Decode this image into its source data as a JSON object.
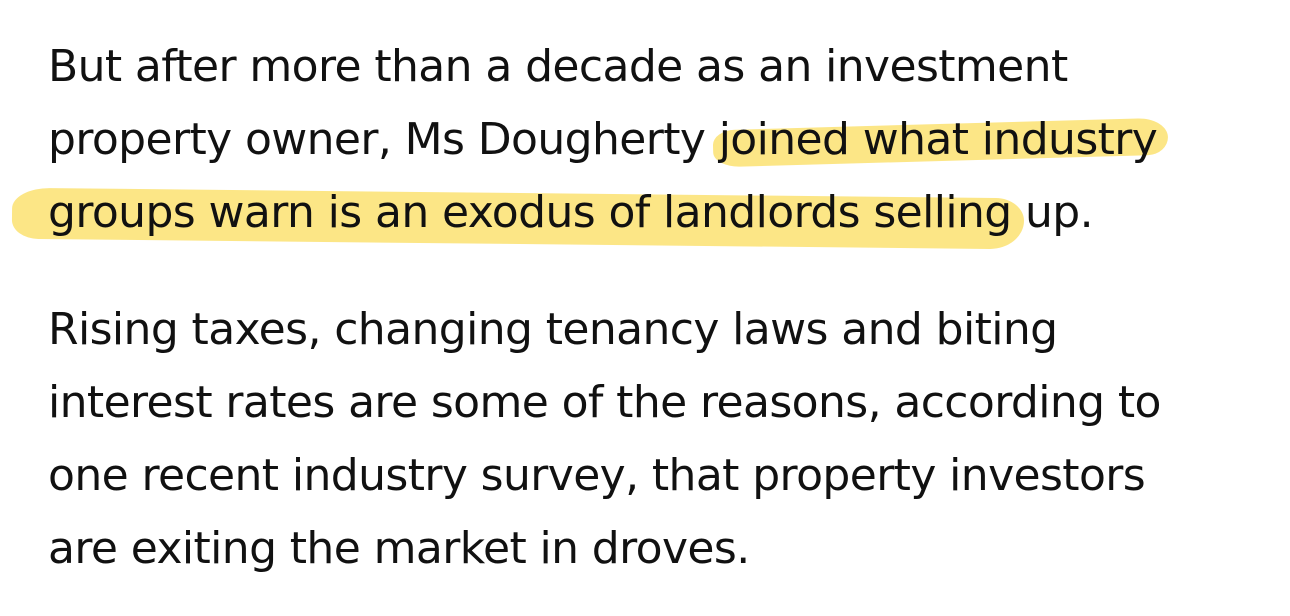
{
  "highlight_color": "#fbdc57",
  "paragraph1": {
    "line1": "But after more than a decade as an investment",
    "line2_before": "property owner, Ms Dougherty ",
    "line2_highlight": "joined what industry",
    "line3_highlight": "groups warn is an exodus of landlords selling",
    "line3_after": " up."
  },
  "paragraph2": {
    "line1": "Rising taxes, changing tenancy laws and biting",
    "line2": "interest rates are some of the reasons, according to",
    "line3": "one recent industry survey, that property investors",
    "line4": "are exiting the market in droves."
  }
}
